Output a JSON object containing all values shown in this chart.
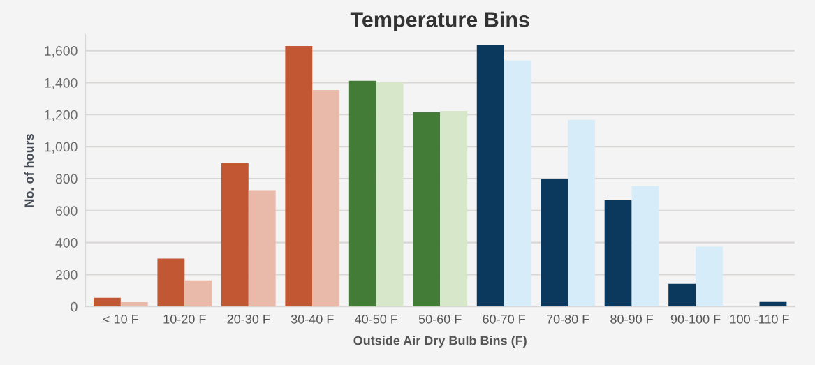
{
  "chart_data": {
    "type": "bar",
    "title": "Temperature Bins",
    "xlabel": "Outside Air Dry Bulb Bins (F)",
    "ylabel": "No. of hours",
    "categories": [
      "< 10 F",
      "10-20 F",
      "20-30 F",
      "30-40 F",
      "40-50 F",
      "50-60 F",
      "60-70 F",
      "70-80 F",
      "80-90 F",
      "90-100 F",
      "100 -110 F"
    ],
    "series": [
      {
        "values": [
          55,
          300,
          896,
          1629,
          1412,
          1215,
          1638,
          800,
          666,
          142,
          null
        ],
        "colors": [
          "#c25733",
          "#c25733",
          "#c25733",
          "#c25733",
          "#437c37",
          "#437c37",
          "#0b385d",
          "#0b385d",
          "#0b385d",
          "#0b385d",
          "#d6ecf8"
        ]
      },
      {
        "values": [
          28,
          164,
          728,
          1354,
          1402,
          1223,
          1538,
          1167,
          753,
          374,
          29
        ],
        "colors": [
          "#e9b9a9",
          "#e9b9a9",
          "#e9b9a9",
          "#e9b9a9",
          "#d6e8c9",
          "#d6e8c9",
          "#d6ecf8",
          "#d6ecf8",
          "#d6ecf8",
          "#d6ecf8",
          "#0b385d"
        ]
      }
    ],
    "ylim": [
      0,
      1700
    ],
    "yticks": [
      {
        "value": 0,
        "label": "0"
      },
      {
        "value": 200,
        "label": "200"
      },
      {
        "value": 400,
        "label": "400"
      },
      {
        "value": 600,
        "label": "600"
      },
      {
        "value": 800,
        "label": "800"
      },
      {
        "value": 1000,
        "label": "1,000"
      },
      {
        "value": 1200,
        "label": "1,200"
      },
      {
        "value": 1400,
        "label": "1,400"
      },
      {
        "value": 1600,
        "label": "1,600"
      }
    ],
    "grid": "y"
  }
}
